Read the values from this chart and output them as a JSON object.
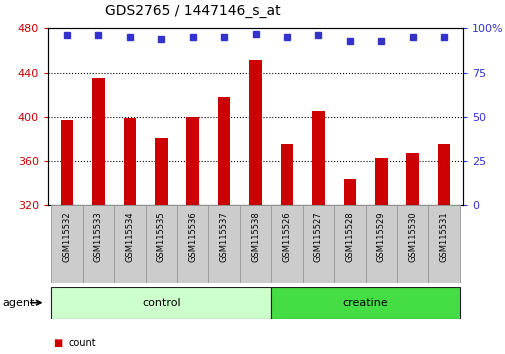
{
  "title": "GDS2765 / 1447146_s_at",
  "samples": [
    "GSM115532",
    "GSM115533",
    "GSM115534",
    "GSM115535",
    "GSM115536",
    "GSM115537",
    "GSM115538",
    "GSM115526",
    "GSM115527",
    "GSM115528",
    "GSM115529",
    "GSM115530",
    "GSM115531"
  ],
  "counts": [
    397,
    435,
    399,
    381,
    400,
    418,
    451,
    375,
    405,
    344,
    363,
    367,
    375
  ],
  "percentiles": [
    96,
    96,
    95,
    94,
    95,
    95,
    97,
    95,
    96,
    93,
    93,
    95,
    95
  ],
  "bar_color": "#cc0000",
  "dot_color": "#3333cc",
  "ymin": 320,
  "ymax": 480,
  "yticks": [
    320,
    360,
    400,
    440,
    480
  ],
  "y2min": 0,
  "y2max": 100,
  "y2ticks": [
    0,
    25,
    50,
    75,
    100
  ],
  "groups": [
    {
      "label": "control",
      "start": 0,
      "end": 7,
      "color": "#ccffcc"
    },
    {
      "label": "creatine",
      "start": 7,
      "end": 13,
      "color": "#44dd44"
    }
  ],
  "agent_label": "agent",
  "left_color": "#cc0000",
  "right_color": "#3333cc",
  "bg_color": "#ffffff",
  "tick_label_bg": "#cccccc",
  "grid_color": "#000000",
  "title_fontsize": 10,
  "tick_fontsize": 8,
  "bar_width": 0.4
}
